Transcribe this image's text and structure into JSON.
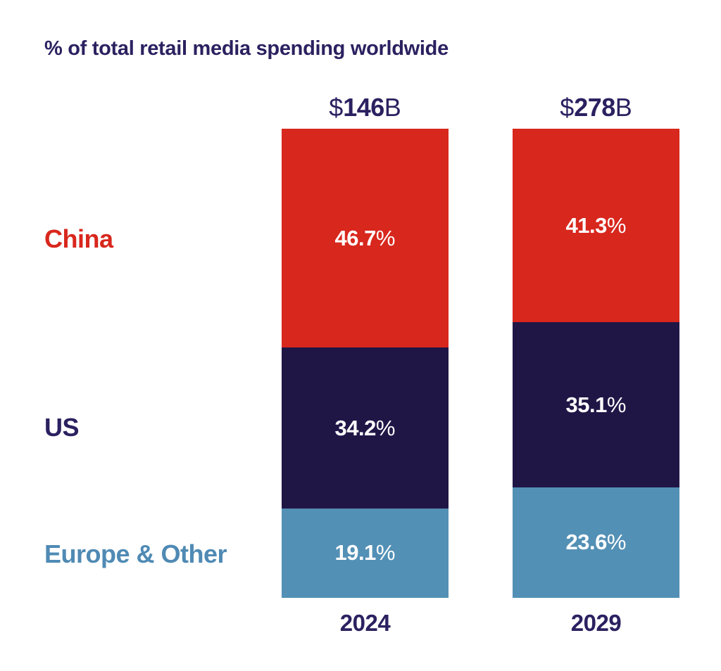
{
  "chart_data": {
    "type": "bar",
    "stacked": true,
    "title": "% of total retail media spending worldwide",
    "categories": [
      "2024",
      "2029"
    ],
    "totals": [
      {
        "currency": "$",
        "amount": "146",
        "unit": "B"
      },
      {
        "currency": "$",
        "amount": "278",
        "unit": "B"
      }
    ],
    "series": [
      {
        "name": "China",
        "color": "#D8271D",
        "label_color": "#D8271D",
        "values": [
          46.7,
          41.3
        ]
      },
      {
        "name": "US",
        "color": "#201646",
        "label_color": "#2B2160",
        "values": [
          34.2,
          35.1
        ]
      },
      {
        "name": "Europe & Other",
        "color": "#5390B5",
        "label_color": "#4F8AB4",
        "values": [
          19.1,
          23.6
        ]
      }
    ],
    "ylim": [
      0,
      100
    ],
    "grid": false,
    "legend_position": "left",
    "value_label_style": "inside-white-bold",
    "percent_sign": "%"
  },
  "palette": {
    "background": "#ffffff",
    "heading_navy": "#2B2160",
    "china_red": "#D8271D",
    "us_navy": "#201646",
    "europe_blue": "#5390B5"
  }
}
